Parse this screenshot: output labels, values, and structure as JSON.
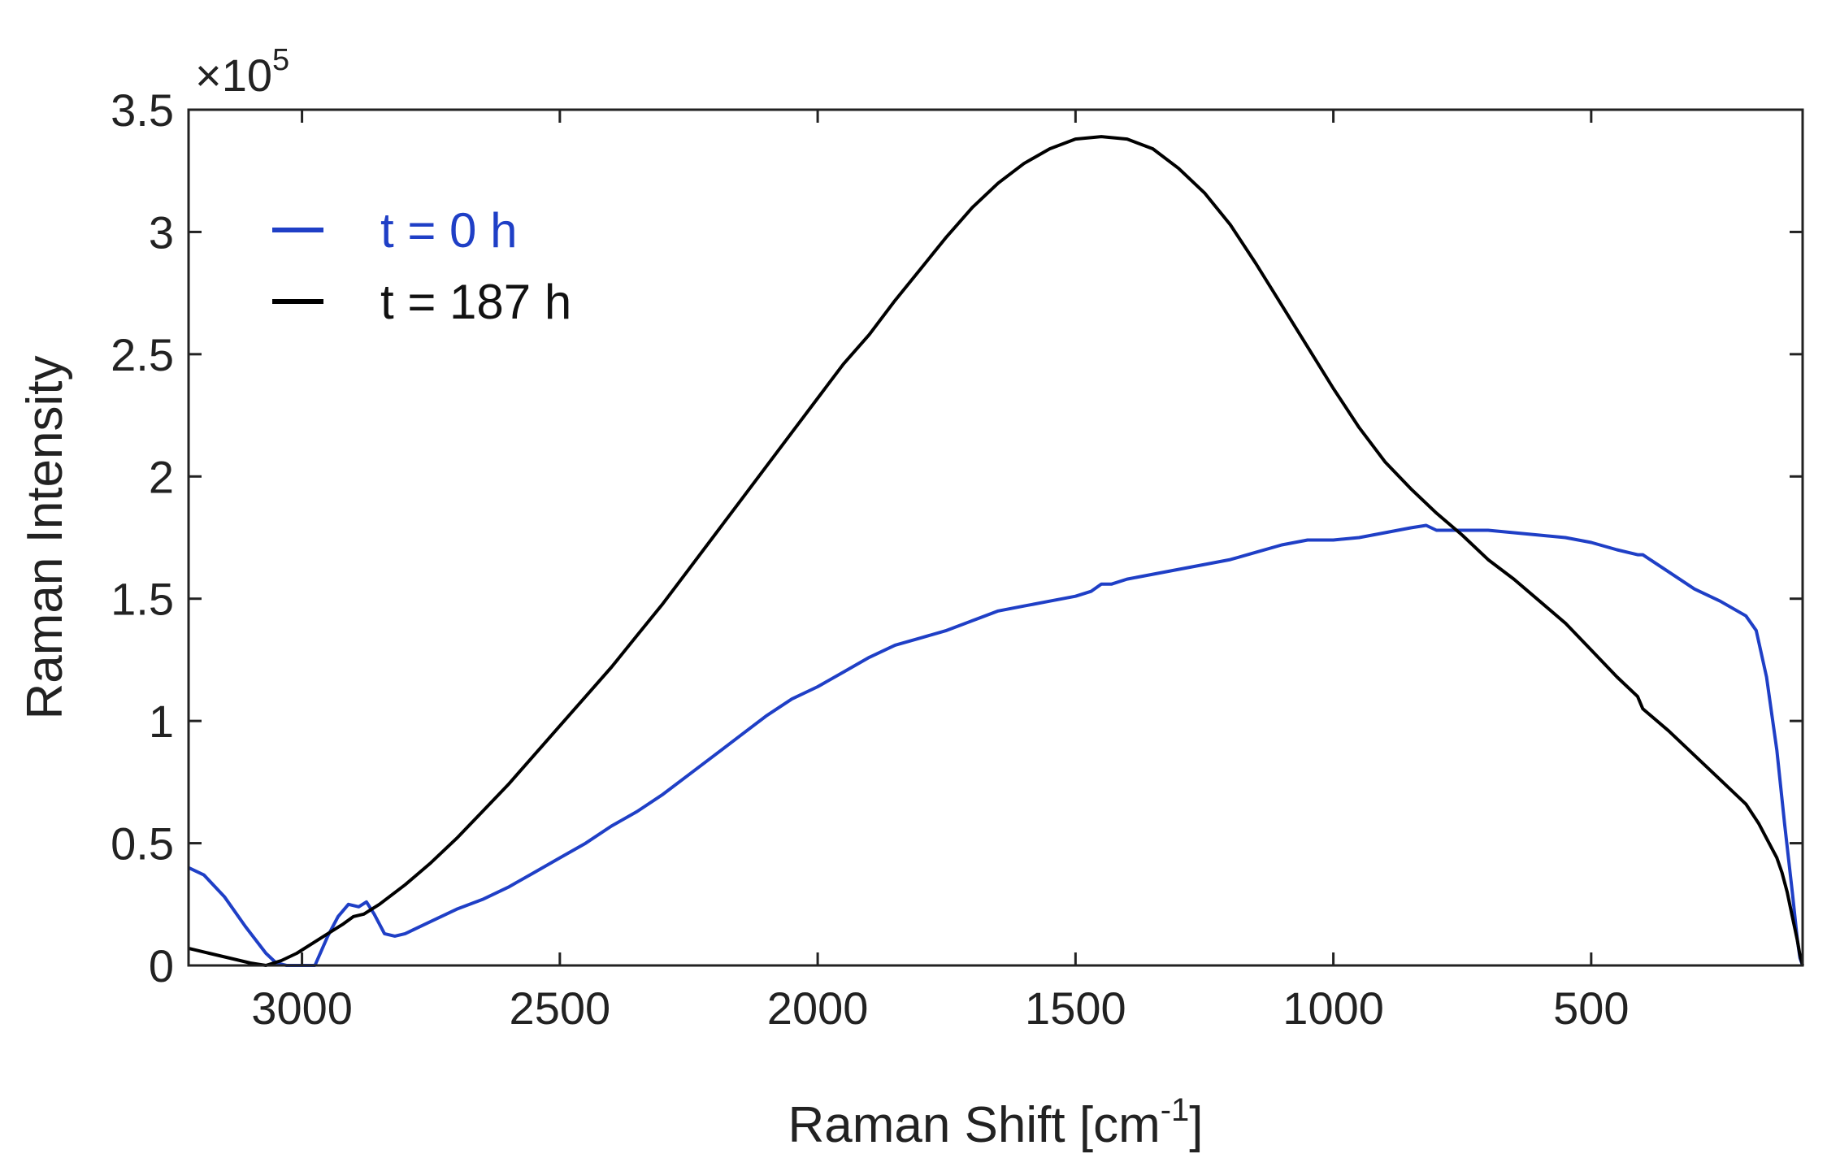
{
  "chart_data": {
    "type": "line",
    "title": "",
    "xlabel": "Raman Shift [cm",
    "xlabel_sup": "-1",
    "xlabel_suffix": "]",
    "ylabel": "Raman Intensity",
    "y_multiplier": "×10",
    "y_multiplier_exp": "5",
    "xlim": [
      3220,
      90
    ],
    "ylim": [
      0,
      3.5
    ],
    "x_reversed": true,
    "xticks": [
      3000,
      2500,
      2000,
      1500,
      1000,
      500
    ],
    "xtick_labels": [
      "3000",
      "2500",
      "2000",
      "1500",
      "1000",
      "500"
    ],
    "yticks": [
      0,
      0.5,
      1,
      1.5,
      2,
      2.5,
      3,
      3.5
    ],
    "ytick_labels": [
      "0",
      "0.5",
      "1",
      "1.5",
      "2",
      "2.5",
      "3",
      "3.5"
    ],
    "grid": false,
    "legend_position": "top-left",
    "series": [
      {
        "name": "t = 0 h",
        "color": "#1f3fc6",
        "x": [
          3220,
          3190,
          3150,
          3110,
          3070,
          3050,
          3030,
          3010,
          2990,
          2975,
          2950,
          2930,
          2910,
          2890,
          2875,
          2860,
          2840,
          2820,
          2800,
          2750,
          2700,
          2650,
          2600,
          2550,
          2500,
          2450,
          2400,
          2350,
          2300,
          2250,
          2200,
          2150,
          2100,
          2050,
          2000,
          1950,
          1900,
          1850,
          1800,
          1750,
          1700,
          1650,
          1600,
          1550,
          1500,
          1470,
          1450,
          1430,
          1400,
          1350,
          1300,
          1250,
          1200,
          1150,
          1100,
          1050,
          1000,
          950,
          900,
          850,
          820,
          800,
          750,
          700,
          650,
          600,
          550,
          500,
          450,
          410,
          400,
          350,
          300,
          250,
          200,
          180,
          160,
          140,
          125,
          110,
          100,
          95,
          90
        ],
        "values": [
          0.4,
          0.37,
          0.28,
          0.16,
          0.05,
          0.01,
          0.0,
          0.0,
          0.0,
          0.0,
          0.12,
          0.2,
          0.25,
          0.24,
          0.26,
          0.21,
          0.13,
          0.12,
          0.13,
          0.18,
          0.23,
          0.27,
          0.32,
          0.38,
          0.44,
          0.5,
          0.57,
          0.63,
          0.7,
          0.78,
          0.86,
          0.94,
          1.02,
          1.09,
          1.14,
          1.2,
          1.26,
          1.31,
          1.34,
          1.37,
          1.41,
          1.45,
          1.47,
          1.49,
          1.51,
          1.53,
          1.56,
          1.56,
          1.58,
          1.6,
          1.62,
          1.64,
          1.66,
          1.69,
          1.72,
          1.74,
          1.74,
          1.75,
          1.77,
          1.79,
          1.8,
          1.78,
          1.78,
          1.78,
          1.77,
          1.76,
          1.75,
          1.73,
          1.7,
          1.68,
          1.68,
          1.61,
          1.54,
          1.49,
          1.43,
          1.37,
          1.18,
          0.88,
          0.58,
          0.3,
          0.1,
          0.03,
          0.0
        ]
      },
      {
        "name": "t = 187 h",
        "color": "#000000",
        "x": [
          3220,
          3180,
          3140,
          3100,
          3070,
          3040,
          3010,
          2980,
          2950,
          2920,
          2900,
          2880,
          2850,
          2800,
          2750,
          2700,
          2650,
          2600,
          2550,
          2500,
          2450,
          2400,
          2350,
          2300,
          2250,
          2200,
          2150,
          2100,
          2050,
          2000,
          1950,
          1900,
          1850,
          1800,
          1750,
          1700,
          1650,
          1600,
          1550,
          1500,
          1450,
          1400,
          1350,
          1300,
          1250,
          1200,
          1150,
          1100,
          1050,
          1000,
          950,
          900,
          850,
          800,
          750,
          700,
          650,
          600,
          550,
          500,
          450,
          410,
          400,
          350,
          300,
          250,
          200,
          175,
          160,
          140,
          130,
          120,
          110,
          100,
          95,
          90
        ],
        "values": [
          0.07,
          0.05,
          0.03,
          0.01,
          0.0,
          0.02,
          0.05,
          0.09,
          0.13,
          0.17,
          0.2,
          0.21,
          0.25,
          0.33,
          0.42,
          0.52,
          0.63,
          0.74,
          0.86,
          0.98,
          1.1,
          1.22,
          1.35,
          1.48,
          1.62,
          1.76,
          1.9,
          2.04,
          2.18,
          2.32,
          2.46,
          2.58,
          2.72,
          2.85,
          2.98,
          3.1,
          3.2,
          3.28,
          3.34,
          3.38,
          3.39,
          3.38,
          3.34,
          3.26,
          3.16,
          3.03,
          2.87,
          2.7,
          2.53,
          2.36,
          2.2,
          2.06,
          1.95,
          1.85,
          1.76,
          1.66,
          1.58,
          1.49,
          1.4,
          1.29,
          1.18,
          1.1,
          1.05,
          0.96,
          0.86,
          0.76,
          0.66,
          0.58,
          0.52,
          0.44,
          0.38,
          0.3,
          0.2,
          0.1,
          0.04,
          0.0
        ]
      }
    ]
  }
}
